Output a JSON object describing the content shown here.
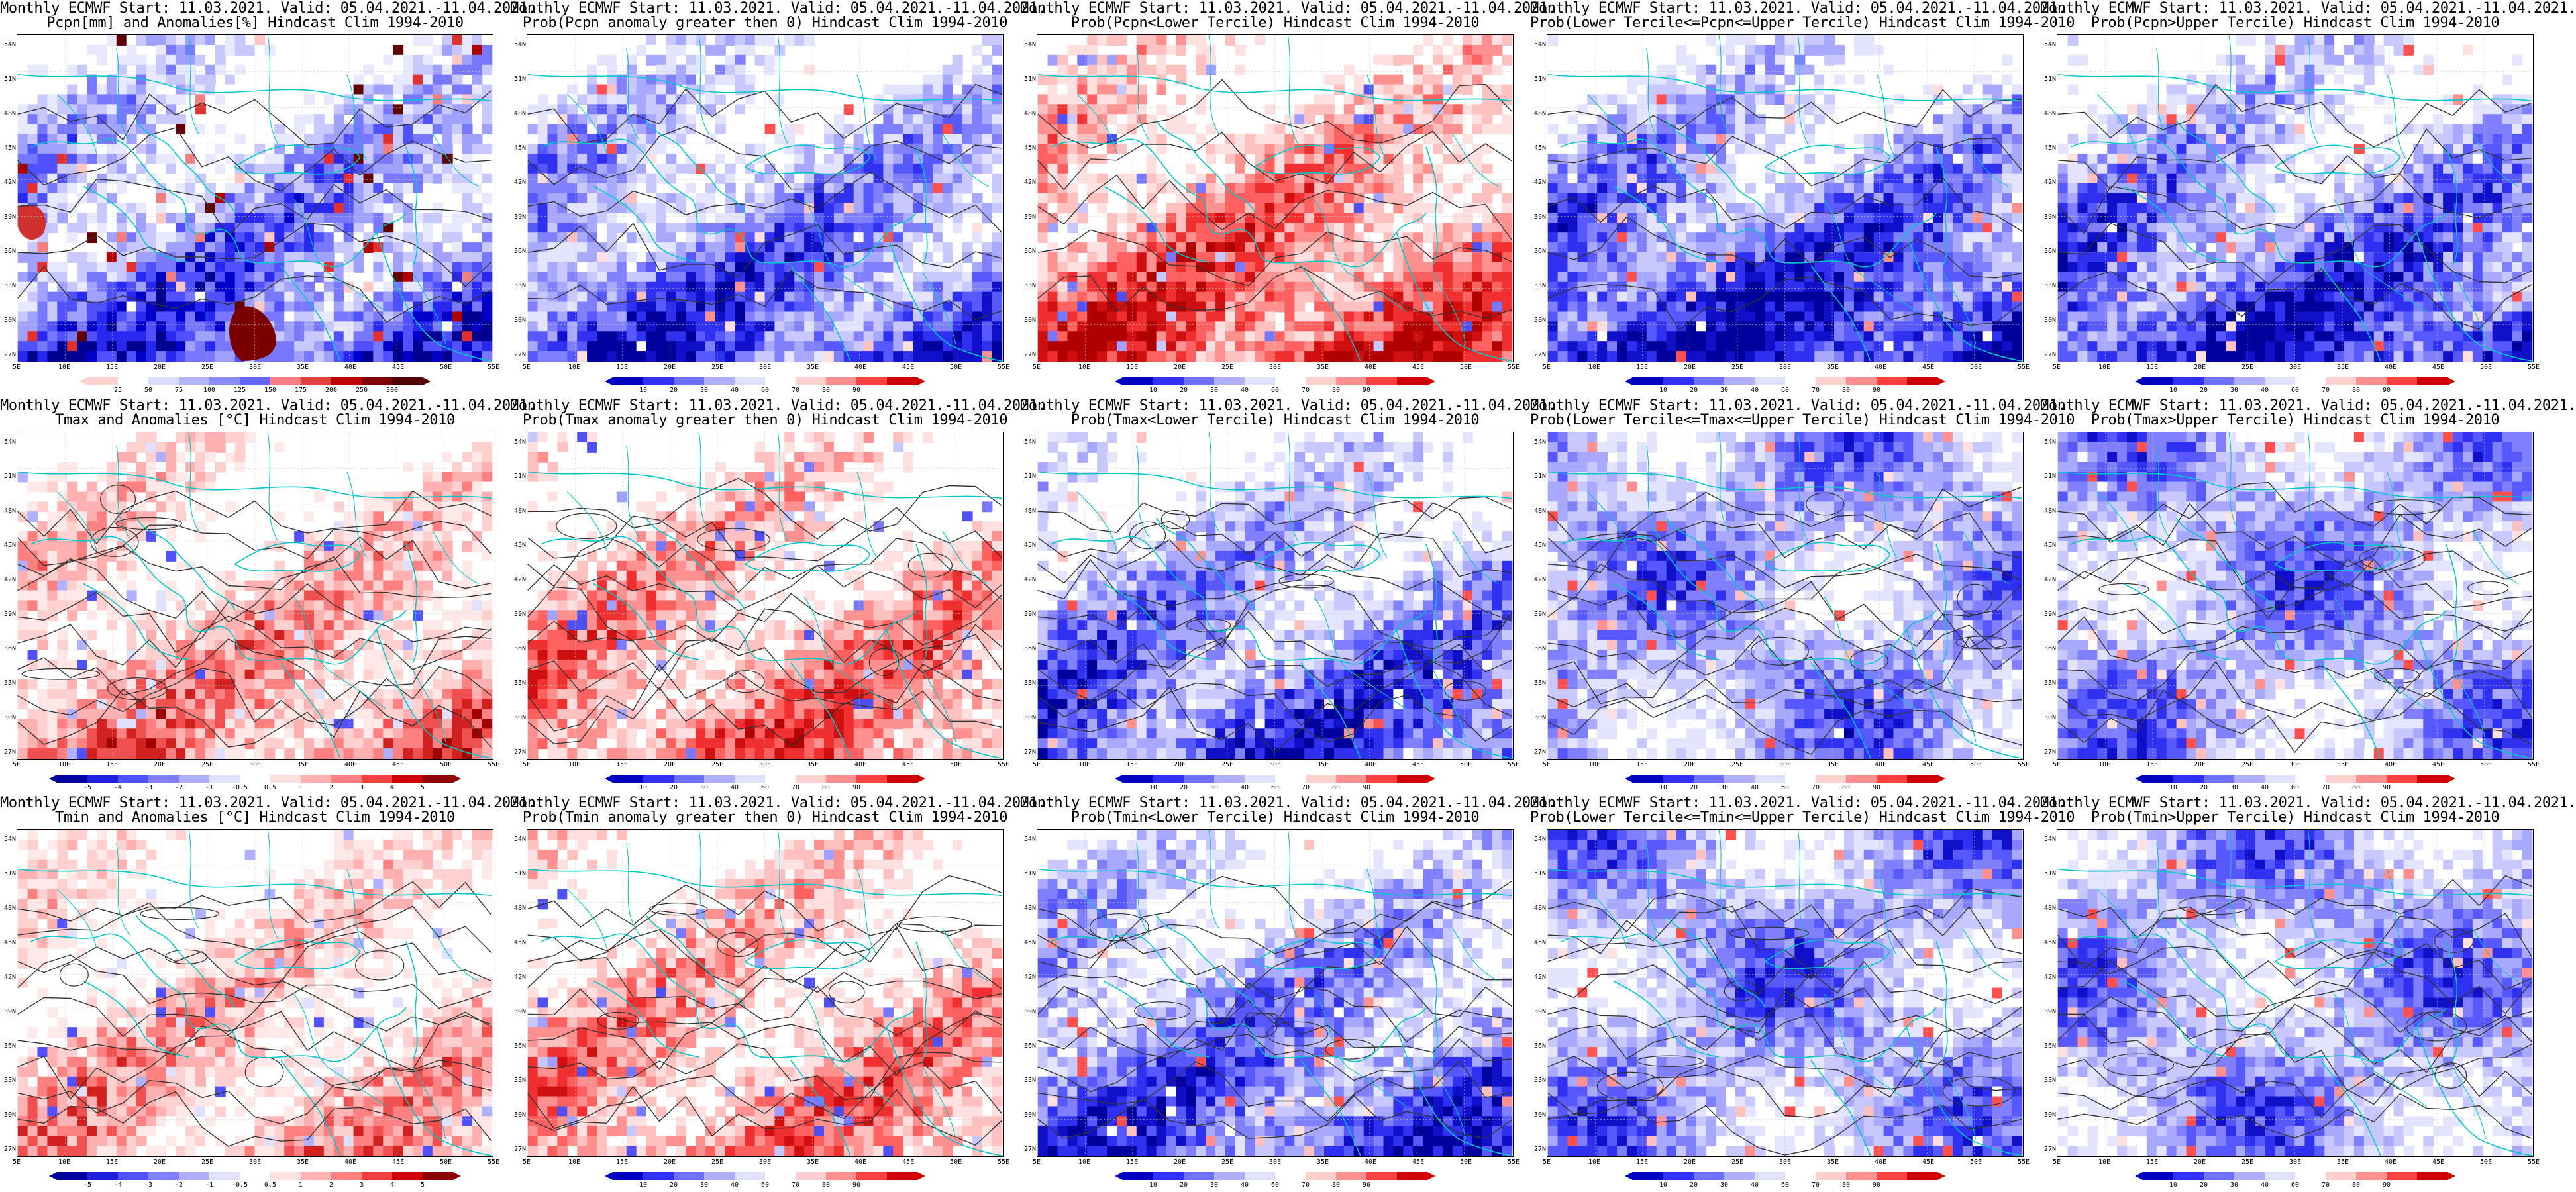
{
  "y_ticks": [
    "54N",
    "51N",
    "48N",
    "45N",
    "42N",
    "39N",
    "36N",
    "33N",
    "30N",
    "27N"
  ],
  "x_ticks": [
    "5E",
    "10E",
    "15E",
    "20E",
    "25E",
    "30E",
    "35E",
    "40E",
    "45E",
    "50E",
    "55E"
  ],
  "palettes": {
    "pcpn": {
      "colors": [
        "#ffffff",
        "#e8e8ff",
        "#c8c8ff",
        "#a0a0ff",
        "#7878ff",
        "#5050ff",
        "#2828f0",
        "#0000c8",
        "#000090"
      ],
      "anom": [
        "#600000",
        "#b00000",
        "#e03030",
        "#f08080",
        "#ffc8c8",
        "#ffffff"
      ],
      "cbar_labels": [
        "25",
        "50",
        "75",
        "100",
        "125",
        "150",
        "175",
        "200",
        "250",
        "300"
      ],
      "cbar_colors": [
        "#ffd0d0",
        "#ffffff",
        "#dcdcff",
        "#b4b4ff",
        "#8c8cff",
        "#6464ff",
        "#ff8080",
        "#e04040",
        "#c00000",
        "#800000",
        "#500000"
      ]
    },
    "prob_blue": {
      "colors": [
        "#ffffff",
        "#e4e4ff",
        "#c8c8ff",
        "#a8a8ff",
        "#8080ff",
        "#5858ff",
        "#3030f0",
        "#1010c8",
        "#00009c"
      ],
      "anom": [
        "#ffffff",
        "#ffe0e0",
        "#ffc0c0",
        "#ff9090",
        "#ff5050"
      ],
      "cbar_labels": [
        "10",
        "20",
        "30",
        "40",
        "60",
        "70",
        "80",
        "90"
      ],
      "cbar_colors": [
        "#0000c0",
        "#3030ff",
        "#7070ff",
        "#b0b0ff",
        "#e0e0ff",
        "#ffffff",
        "#ffd0d0",
        "#ff9090",
        "#ff4040",
        "#d00000"
      ]
    },
    "prob_red": {
      "colors": [
        "#ffffff",
        "#ffe0e0",
        "#ffc0c0",
        "#ff9090",
        "#ff6060",
        "#f03030",
        "#d01010",
        "#b00000"
      ],
      "anom": [
        "#c8c8ff",
        "#a0a0ff",
        "#7878ff",
        "#5050f0"
      ],
      "cbar_labels": [
        "10",
        "20",
        "30",
        "40",
        "60",
        "70",
        "80",
        "90"
      ],
      "cbar_colors": [
        "#0000c0",
        "#3030ff",
        "#7070ff",
        "#b0b0ff",
        "#e0e0ff",
        "#ffffff",
        "#ffd0d0",
        "#ff9090",
        "#ff4040",
        "#d00000"
      ]
    },
    "temp": {
      "colors": [
        "#ffffff",
        "#ffe8e8",
        "#ffd0d0",
        "#ffb0b0",
        "#ff8080",
        "#f05050",
        "#d02020",
        "#a00000"
      ],
      "anom": [
        "#e0e0ff",
        "#b0b0ff",
        "#5050ff"
      ],
      "cbar_labels": [
        "-5",
        "-4",
        "-3",
        "-2",
        "-1",
        "-0.5",
        "0.5",
        "1",
        "2",
        "3",
        "4",
        "5"
      ],
      "cbar_colors": [
        "#0000a0",
        "#2020e0",
        "#5050ff",
        "#8080ff",
        "#b0b0ff",
        "#e0e0ff",
        "#ffffff",
        "#ffe0e0",
        "#ffb0b0",
        "#ff8080",
        "#f04040",
        "#d00000",
        "#900000"
      ]
    }
  },
  "panels": [
    {
      "title1": "Monthly ECMWF Start: 11.03.2021. Valid: 05.04.2021.-11.04.2021.",
      "title2": "Pcpn[mm] and Anomalies[%] Hindcast Clim 1994-2010",
      "scheme": "pcpn",
      "south": "blue",
      "dense": 0.55,
      "contours": "pcpn",
      "seed": 11
    },
    {
      "title1": "Monthly ECMWF Start: 11.03.2021. Valid: 05.04.2021.-11.04.2021.",
      "title2": "Prob(Pcpn anomaly greater then 0) Hindcast Clim 1994-2010",
      "scheme": "prob_blue",
      "south": "blue",
      "dense": 0.6,
      "contours": "pcpn",
      "seed": 23
    },
    {
      "title1": "Monthly ECMWF Start: 11.03.2021. Valid: 05.04.2021.-11.04.2021.",
      "title2": "Prob(Pcpn<Lower Tercile) Hindcast Clim 1994-2010",
      "scheme": "prob_red",
      "south": "red",
      "dense": 0.6,
      "contours": "pcpn",
      "seed": 37
    },
    {
      "title1": "Monthly ECMWF Start: 11.03.2021. Valid: 05.04.2021.-11.04.2021.",
      "title2": "Prob(Lower Tercile<=Pcpn<=Upper Tercile) Hindcast Clim 1994-2010",
      "scheme": "prob_blue",
      "south": "blue",
      "dense": 0.75,
      "contours": "pcpn",
      "seed": 41
    },
    {
      "title1": "Monthly ECMWF Start: 11.03.2021. Valid: 05.04.2021.-11.04.2021.",
      "title2": "Prob(Pcpn>Upper Tercile) Hindcast Clim 1994-2010",
      "scheme": "prob_blue",
      "south": "blue",
      "dense": 0.7,
      "contours": "pcpn",
      "seed": 53
    },
    {
      "title1": "Monthly ECMWF Start: 11.03.2021. Valid: 05.04.2021.-11.04.2021.",
      "title2": "Tmax and Anomalies [°C] Hindcast Clim 1994-2010",
      "scheme": "temp",
      "south": "red",
      "dense": 0.45,
      "contours": "temp",
      "seed": 61
    },
    {
      "title1": "Monthly ECMWF Start: 11.03.2021. Valid: 05.04.2021.-11.04.2021.",
      "title2": "Prob(Tmax anomaly greater then 0) Hindcast Clim 1994-2010",
      "scheme": "prob_red",
      "south": "red",
      "dense": 0.45,
      "contours": "temp",
      "seed": 71
    },
    {
      "title1": "Monthly ECMWF Start: 11.03.2021. Valid: 05.04.2021.-11.04.2021.",
      "title2": "Prob(Tmax<Lower Tercile) Hindcast Clim 1994-2010",
      "scheme": "prob_blue",
      "south": "blue",
      "dense": 0.6,
      "contours": "temp",
      "seed": 83
    },
    {
      "title1": "Monthly ECMWF Start: 11.03.2021. Valid: 05.04.2021.-11.04.2021.",
      "title2": "Prob(Lower Tercile<=Tmax<=Upper Tercile) Hindcast Clim 1994-2010",
      "scheme": "prob_blue",
      "south": "light",
      "dense": 0.45,
      "contours": "temp",
      "seed": 97
    },
    {
      "title1": "Monthly ECMWF Start: 11.03.2021. Valid: 05.04.2021.-11.04.2021.",
      "title2": "Prob(Tmax>Upper Tercile) Hindcast Clim 1994-2010",
      "scheme": "prob_blue",
      "south": "light",
      "dense": 0.4,
      "contours": "temp",
      "seed": 101
    },
    {
      "title1": "Monthly ECMWF Start: 11.03.2021. Valid: 05.04.2021.-11.04.2021.",
      "title2": "Tmin and Anomalies [°C] Hindcast Clim 1994-2010",
      "scheme": "temp",
      "south": "red",
      "dense": 0.35,
      "contours": "temp",
      "seed": 113
    },
    {
      "title1": "Monthly ECMWF Start: 11.03.2021. Valid: 05.04.2021.-11.04.2021.",
      "title2": "Prob(Tmin anomaly greater then 0) Hindcast Clim 1994-2010",
      "scheme": "prob_red",
      "south": "red",
      "dense": 0.4,
      "contours": "temp",
      "seed": 127
    },
    {
      "title1": "Monthly ECMWF Start: 11.03.2021. Valid: 05.04.2021.-11.04.2021.",
      "title2": "Prob(Tmin<Lower Tercile) Hindcast Clim 1994-2010",
      "scheme": "prob_blue",
      "south": "blue",
      "dense": 0.6,
      "contours": "temp",
      "seed": 131
    },
    {
      "title1": "Monthly ECMWF Start: 11.03.2021. Valid: 05.04.2021.-11.04.2021.",
      "title2": "Prob(Lower Tercile<=Tmin<=Upper Tercile) Hindcast Clim 1994-2010",
      "scheme": "prob_blue",
      "south": "light",
      "dense": 0.5,
      "contours": "temp",
      "seed": 139
    },
    {
      "title1": "Monthly ECMWF Start: 11.03.2021. Valid: 05.04.2021.-11.04.2021.",
      "title2": "Prob(Tmin>Upper Tercile) Hindcast Clim 1994-2010",
      "scheme": "prob_blue",
      "south": "light",
      "dense": 0.4,
      "contours": "temp",
      "seed": 149
    }
  ]
}
